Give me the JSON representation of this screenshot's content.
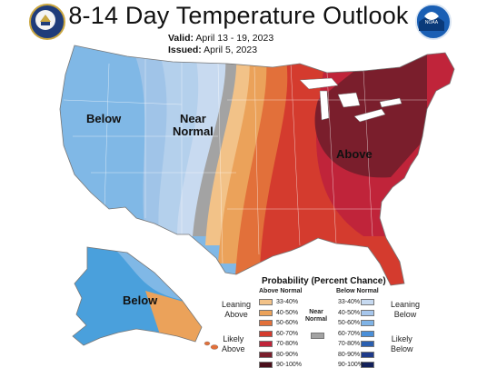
{
  "header": {
    "title": "8-14 Day Temperature Outlook",
    "valid_label": "Valid:",
    "valid_value": "April 13 - 19, 2023",
    "issued_label": "Issued:",
    "issued_value": "April 5, 2023"
  },
  "logos": {
    "left": "commerce-seal-icon",
    "right": "noaa-logo-icon",
    "right_text": "NOAA"
  },
  "map": {
    "labels": {
      "below_west": "Below",
      "near_normal_1": "Near",
      "near_normal_2": "Normal",
      "above_east": "Above",
      "below_alaska": "Below"
    },
    "colors": {
      "below_33_40": "#b4d0ec",
      "below_40_50": "#a0c4e8",
      "below_50_60": "#80b8e6",
      "below_60_70": "#4aa0dc",
      "near_normal": "#a3a3a3",
      "above_33_40": "#f2c288",
      "above_40_50": "#eba25a",
      "above_50_60": "#e2703a",
      "above_60_70": "#d43b2e",
      "above_70_80": "#c0243a",
      "above_80_90": "#7a1e2c",
      "above_90_100": "#4a0e1a"
    }
  },
  "legend": {
    "title": "Probability (Percent Chance)",
    "above_header": "Above Normal",
    "below_header": "Below Normal",
    "near_label_1": "Near",
    "near_label_2": "Normal",
    "leaning_above_1": "Leaning",
    "leaning_above_2": "Above",
    "likely_above_1": "Likely",
    "likely_above_2": "Above",
    "leaning_below_1": "Leaning",
    "leaning_below_2": "Below",
    "likely_below_1": "Likely",
    "likely_below_2": "Below",
    "above_items": [
      {
        "label": "33-40%",
        "color": "#f2c288"
      },
      {
        "label": "40-50%",
        "color": "#eba25a"
      },
      {
        "label": "50-60%",
        "color": "#e2703a"
      },
      {
        "label": "60-70%",
        "color": "#d43b2e"
      },
      {
        "label": "70-80%",
        "color": "#c0243a"
      },
      {
        "label": "80-90%",
        "color": "#7a1e2c"
      },
      {
        "label": "90-100%",
        "color": "#4a0e1a"
      }
    ],
    "below_items": [
      {
        "label": "33-40%",
        "color": "#c6d9f0"
      },
      {
        "label": "40-50%",
        "color": "#a6c6ec"
      },
      {
        "label": "50-60%",
        "color": "#7fb3e6"
      },
      {
        "label": "60-70%",
        "color": "#4a8fd8"
      },
      {
        "label": "70-80%",
        "color": "#2a5fb0"
      },
      {
        "label": "80-90%",
        "color": "#1e3a8a"
      },
      {
        "label": "90-100%",
        "color": "#12205a"
      }
    ],
    "near_color": "#a3a3a3"
  }
}
